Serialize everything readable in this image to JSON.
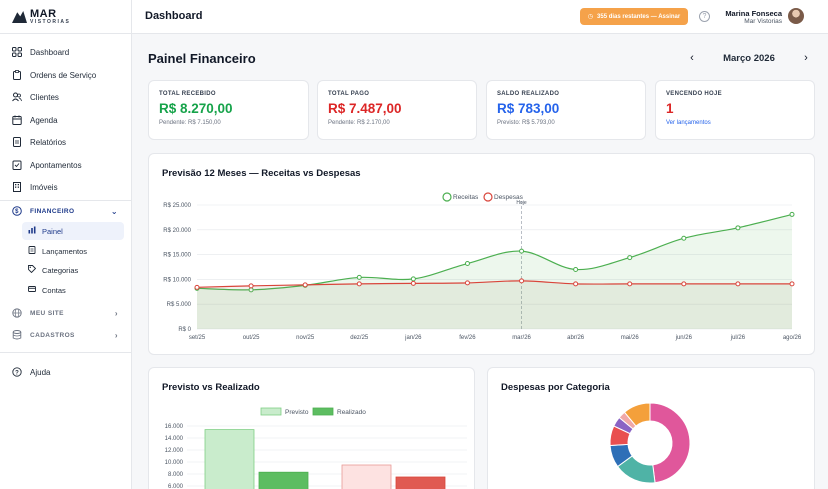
{
  "brand": {
    "name": "MAR",
    "sub": "VISTORIAS"
  },
  "sidebar": {
    "items": [
      {
        "label": "Dashboard",
        "icon": "grid-icon"
      },
      {
        "label": "Ordens de Serviço",
        "icon": "clipboard-icon"
      },
      {
        "label": "Clientes",
        "icon": "users-icon"
      },
      {
        "label": "Agenda",
        "icon": "calendar-icon"
      },
      {
        "label": "Relatórios",
        "icon": "report-icon"
      },
      {
        "label": "Apontamentos",
        "icon": "note-icon"
      },
      {
        "label": "Imóveis",
        "icon": "building-icon"
      }
    ],
    "financeiro": {
      "label": "FINANCEIRO",
      "icon": "dollar-icon"
    },
    "sub_items": [
      {
        "label": "Painel",
        "icon": "chart-icon",
        "active": true
      },
      {
        "label": "Lançamentos",
        "icon": "doc-icon"
      },
      {
        "label": "Categorias",
        "icon": "tag-icon"
      },
      {
        "label": "Contas",
        "icon": "card-icon"
      }
    ],
    "meu_site": {
      "label": "MEU SITE",
      "icon": "globe-icon"
    },
    "cadastros": {
      "label": "CADASTROS",
      "icon": "database-icon"
    },
    "help": {
      "label": "Ajuda",
      "icon": "help-icon"
    }
  },
  "header": {
    "title": "Dashboard",
    "subscription": "355 dias restantes — Assinar",
    "user_name": "Marina Fonseca",
    "user_org": "Mar Vistorias"
  },
  "main": {
    "title": "Painel Financeiro",
    "month": "Março 2026"
  },
  "kpis": [
    {
      "label": "TOTAL RECEBIDO",
      "value": "R$ 8.270,00",
      "sub": "Pendente: R$ 7.150,00",
      "color": "#16a34a"
    },
    {
      "label": "TOTAL PAGO",
      "value": "R$ 7.487,00",
      "sub": "Pendente: R$ 2.170,00",
      "color": "#dc2626"
    },
    {
      "label": "SALDO REALIZADO",
      "value": "R$ 783,00",
      "sub": "Previsto: R$ 5.793,00",
      "color": "#2563eb"
    },
    {
      "label": "VENCENDO HOJE",
      "value": "1",
      "link": "Ver lançamentos",
      "color": "#dc2626"
    }
  ],
  "chart_data": [
    {
      "type": "line",
      "title": "Previsão 12 Meses — Receitas vs Despesas",
      "categories": [
        "set/25",
        "out/25",
        "nov/25",
        "dez/25",
        "jan/26",
        "fev/26",
        "mar/26",
        "abr/26",
        "mai/26",
        "jun/26",
        "jul/26",
        "ago/26"
      ],
      "series": [
        {
          "name": "Receitas",
          "color": "#4caf50",
          "values": [
            8200,
            7900,
            8800,
            10400,
            10100,
            13200,
            15700,
            12000,
            14400,
            18300,
            20400,
            23100
          ]
        },
        {
          "name": "Despesas",
          "color": "#d9453b",
          "values": [
            8400,
            8700,
            8900,
            9100,
            9200,
            9300,
            9700,
            9100,
            9100,
            9100,
            9100,
            9100
          ]
        }
      ],
      "ylim": [
        0,
        25000
      ],
      "yticks": [
        "R$ 0",
        "R$ 5.000",
        "R$ 10.000",
        "R$ 15.000",
        "R$ 20.000",
        "R$ 25.000"
      ],
      "annotation": "Hoje",
      "legend": "top-center"
    },
    {
      "type": "bar",
      "title": "Previsto vs Realizado",
      "series": [
        {
          "name": "Previsto",
          "color": "#c9eccc",
          "values": [
            15400,
            9500
          ]
        },
        {
          "name": "Realizado",
          "color": "#5dbd61",
          "values": [
            8300,
            7500
          ]
        }
      ],
      "yticks": [
        "6.000",
        "8.000",
        "10.000",
        "12.000",
        "14.000",
        "16.000"
      ],
      "legend": "top-center"
    },
    {
      "type": "pie",
      "title": "Despesas por Categoria",
      "values": [
        48,
        17,
        9,
        8,
        4,
        3,
        11
      ],
      "colors": [
        "#e0579b",
        "#4fb3a6",
        "#2e6fb7",
        "#e94f4f",
        "#8a63c4",
        "#f0a8a8",
        "#f4a03b"
      ]
    }
  ]
}
